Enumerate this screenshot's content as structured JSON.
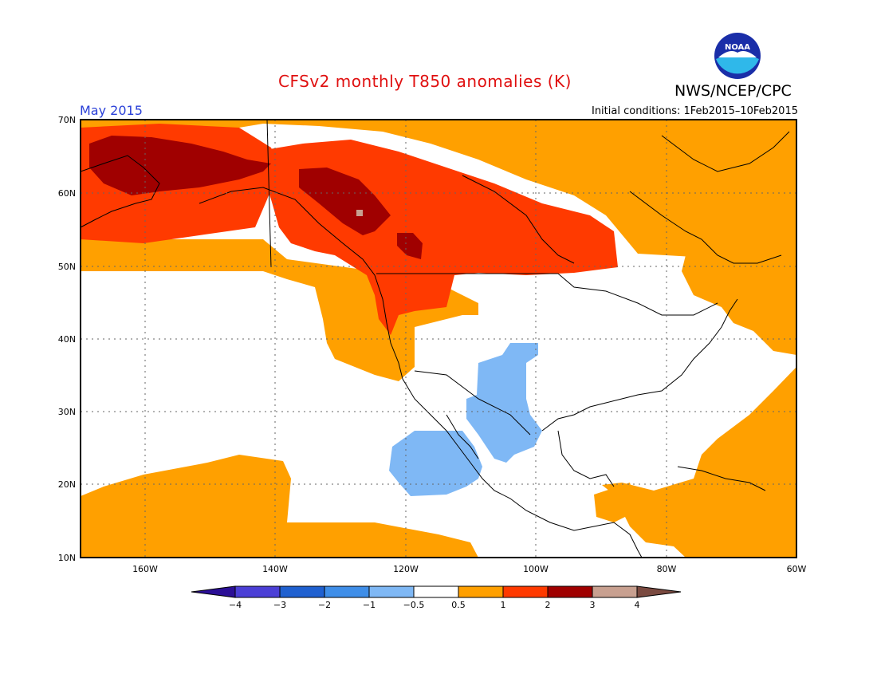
{
  "header": {
    "title": "CFSv2 monthly T850 anomalies (K)",
    "org": "NWS/NCEP/CPC",
    "period": "May 2015",
    "initial_conditions": "Initial conditions: 1Feb2015–10Feb2015",
    "logo_text": "NOAA"
  },
  "map": {
    "lat_labels": [
      "70N",
      "60N",
      "50N",
      "40N",
      "30N",
      "20N",
      "10N"
    ],
    "lon_labels": [
      "160W",
      "140W",
      "120W",
      "100W",
      "80W",
      "60W"
    ],
    "grid": true,
    "projection": "cylindrical equidistant",
    "extent": {
      "lon": [
        -170,
        -60
      ],
      "lat": [
        10,
        70
      ]
    }
  },
  "legend": {
    "labels": [
      "−4",
      "−3",
      "−2",
      "−1",
      "−0.5",
      "0.5",
      "1",
      "2",
      "3",
      "4"
    ],
    "colors": [
      "#2b0f96",
      "#4b3fd6",
      "#1f60d0",
      "#3f8ee8",
      "#7fb8f5",
      "#ffffff",
      "#ffa000",
      "#ff3a00",
      "#a00000",
      "#c8a090",
      "#7a4a40"
    ]
  },
  "colors": {
    "title": "#e01010",
    "period": "#2a40d8",
    "anom_05_1": "#ffa000",
    "anom_1_2": "#ff3a00",
    "anom_2_3": "#a00000",
    "anom_3_4": "#c8a090",
    "anom_neg1_neg05": "#7fb8f5"
  }
}
